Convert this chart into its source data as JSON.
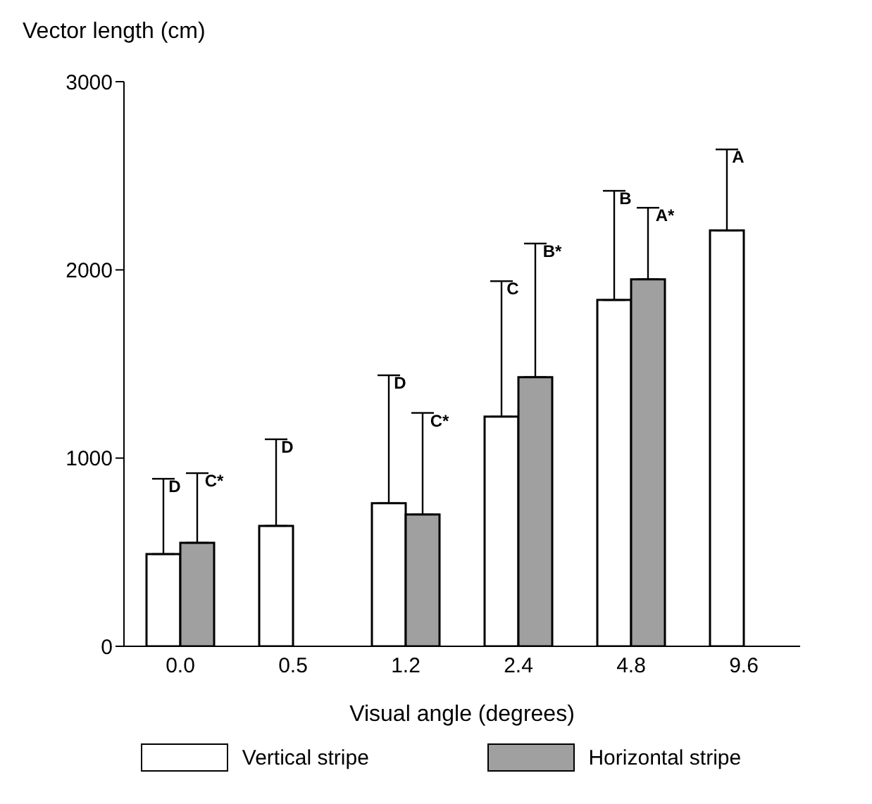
{
  "chart_data": {
    "type": "bar",
    "xlabel": "Visual angle (degrees)",
    "ylabel": "Vector length (cm)",
    "categories": [
      "0.0",
      "0.5",
      "1.2",
      "2.4",
      "4.8",
      "9.6"
    ],
    "series": [
      {
        "name": "Vertical stripe",
        "color": "#ffffff",
        "values": [
          490,
          640,
          760,
          1220,
          1840,
          2210
        ],
        "errors": [
          [
            490,
            890
          ],
          [
            640,
            1100
          ],
          [
            760,
            1440
          ],
          [
            1220,
            1940
          ],
          [
            1840,
            2420
          ],
          [
            2210,
            2640
          ]
        ]
      },
      {
        "name": "Horizontal stripe",
        "color": "#a0a0a0",
        "values": [
          550,
          null,
          700,
          1430,
          1950,
          null
        ],
        "errors": [
          [
            550,
            920
          ],
          null,
          [
            700,
            1240
          ],
          [
            1430,
            2140
          ],
          [
            1950,
            2330
          ],
          null
        ]
      }
    ],
    "ylim": [
      0,
      3000
    ],
    "yticks": [
      0,
      1000,
      2000,
      3000
    ],
    "grid": false,
    "legend": "bottom",
    "annotations": [
      {
        "text": "D",
        "x": "0.0",
        "y": 890
      },
      {
        "text": "C*",
        "x": "0.0",
        "y": 920
      },
      {
        "text": "D",
        "x": "0.5",
        "y": 1100
      },
      {
        "text": "D",
        "x": "1.2",
        "y": 1440
      },
      {
        "text": "C*",
        "x": "1.2",
        "y": 1240
      },
      {
        "text": "C",
        "x": "2.4",
        "y": 1940
      },
      {
        "text": "B*",
        "x": "2.4",
        "y": 2140
      },
      {
        "text": "B",
        "x": "4.8",
        "y": 2420
      },
      {
        "text": "A*",
        "x": "4.8",
        "y": 2330
      },
      {
        "text": "A",
        "x": "9.6",
        "y": 2640
      }
    ]
  }
}
